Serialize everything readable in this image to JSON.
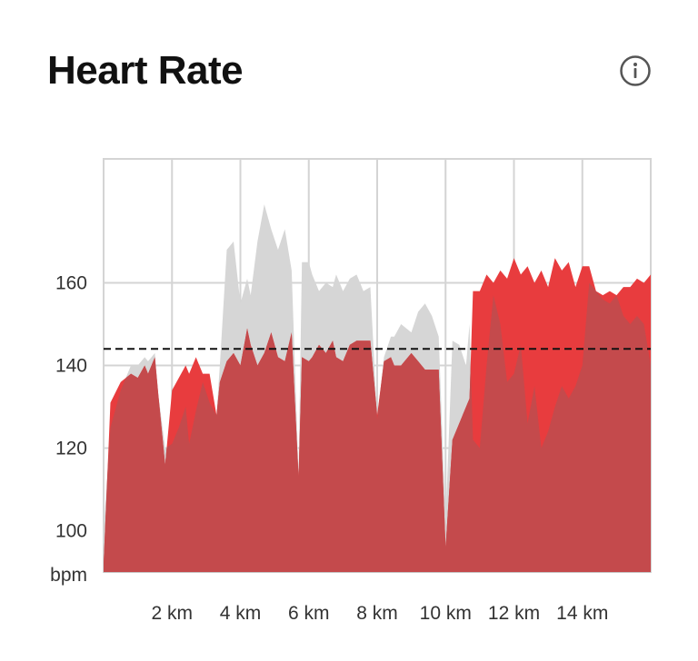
{
  "header": {
    "title": "Heart Rate",
    "info_icon": "info-circle-icon"
  },
  "colors": {
    "current_run": "#e83c3e",
    "current_run_overlap": "#c44a4c",
    "comparison_run": "#d6d6d6",
    "average_line": "#111111",
    "grid": "#d4d4d4"
  },
  "chart_data": {
    "type": "area",
    "title": "Heart Rate",
    "xlabel": "",
    "ylabel": "bpm",
    "xlim": [
      0,
      16
    ],
    "ylim": [
      90,
      190
    ],
    "x_ticks": [
      2,
      4,
      6,
      8,
      10,
      12,
      14
    ],
    "x_tick_labels": [
      "2 km",
      "4 km",
      "6 km",
      "8 km",
      "10 km",
      "12 km",
      "14 km"
    ],
    "y_ticks": [
      100,
      120,
      140,
      160
    ],
    "y_tick_labels": [
      "100",
      "120",
      "140",
      "160"
    ],
    "y_unit_label": "bpm",
    "grid": true,
    "reference_line": {
      "y": 144,
      "style": "dashed"
    },
    "series": [
      {
        "role": "current",
        "x": [
          0,
          0.2,
          0.5,
          0.8,
          1.0,
          1.2,
          1.3,
          1.5,
          1.6,
          1.8,
          2.0,
          2.2,
          2.4,
          2.5,
          2.7,
          2.9,
          3.1,
          3.3,
          3.4,
          3.6,
          3.8,
          4.0,
          4.2,
          4.3,
          4.5,
          4.7,
          4.9,
          5.1,
          5.3,
          5.5,
          5.7,
          5.8,
          6.0,
          6.1,
          6.3,
          6.5,
          6.7,
          6.8,
          7.0,
          7.2,
          7.4,
          7.6,
          7.8,
          8.0,
          8.2,
          8.4,
          8.5,
          8.7,
          9.0,
          9.2,
          9.4,
          9.6,
          9.8,
          10.0,
          10.2,
          10.4,
          10.6,
          10.7,
          10.8,
          11.0,
          11.2,
          11.4,
          11.6,
          11.8,
          12.0,
          12.2,
          12.4,
          12.6,
          12.8,
          13.0,
          13.2,
          13.4,
          13.6,
          13.8,
          14.0,
          14.2,
          14.4,
          14.6,
          14.8,
          15.0,
          15.2,
          15.4,
          15.6,
          15.8,
          16.0
        ],
        "y": [
          92,
          131,
          136,
          138,
          137,
          140,
          138,
          142,
          133,
          116,
          134,
          137,
          140,
          138,
          142,
          138,
          138,
          128,
          136,
          141,
          143,
          140,
          149,
          145,
          140,
          143,
          148,
          142,
          141,
          148,
          113,
          142,
          141,
          142,
          145,
          143,
          146,
          142,
          141,
          145,
          146,
          146,
          146,
          128,
          141,
          142,
          140,
          140,
          143,
          141,
          139,
          139,
          139,
          96,
          122,
          126,
          130,
          132,
          158,
          158,
          162,
          160,
          163,
          161,
          166,
          162,
          164,
          160,
          163,
          159,
          166,
          163,
          165,
          159,
          164,
          164,
          158,
          157,
          158,
          157,
          159,
          159,
          161,
          160,
          162
        ]
      },
      {
        "role": "comparison",
        "x": [
          0,
          0.2,
          0.5,
          0.8,
          1.0,
          1.2,
          1.3,
          1.5,
          1.6,
          1.8,
          2.0,
          2.2,
          2.4,
          2.5,
          2.7,
          2.9,
          3.1,
          3.3,
          3.4,
          3.6,
          3.8,
          4.0,
          4.2,
          4.3,
          4.5,
          4.7,
          4.9,
          5.1,
          5.3,
          5.5,
          5.7,
          5.8,
          6.0,
          6.1,
          6.3,
          6.5,
          6.7,
          6.8,
          7.0,
          7.2,
          7.4,
          7.6,
          7.8,
          8.0,
          8.2,
          8.4,
          8.5,
          8.7,
          9.0,
          9.2,
          9.4,
          9.6,
          9.8,
          10.0,
          10.2,
          10.4,
          10.6,
          10.7,
          10.8,
          11.0,
          11.2,
          11.4,
          11.6,
          11.8,
          12.0,
          12.2,
          12.4,
          12.6,
          12.8,
          13.0,
          13.2,
          13.4,
          13.6,
          13.8,
          14.0,
          14.2,
          14.4,
          14.6,
          14.8,
          15.0,
          15.2,
          15.4,
          15.6,
          15.8,
          16.0
        ],
        "y": [
          100,
          125,
          134,
          140,
          140,
          142,
          141,
          143,
          133,
          120,
          121,
          125,
          130,
          121,
          129,
          136,
          131,
          128,
          140,
          168,
          170,
          155,
          161,
          157,
          170,
          179,
          173,
          168,
          173,
          163,
          114,
          165,
          165,
          162,
          158,
          160,
          159,
          162,
          158,
          161,
          162,
          158,
          159,
          127,
          142,
          147,
          147,
          150,
          148,
          153,
          155,
          152,
          147,
          102,
          146,
          145,
          140,
          150,
          122,
          120,
          140,
          157,
          150,
          136,
          138,
          145,
          126,
          135,
          120,
          124,
          130,
          135,
          132,
          135,
          140,
          160,
          158,
          156,
          155,
          157,
          152,
          150,
          152,
          150,
          140
        ]
      }
    ]
  }
}
